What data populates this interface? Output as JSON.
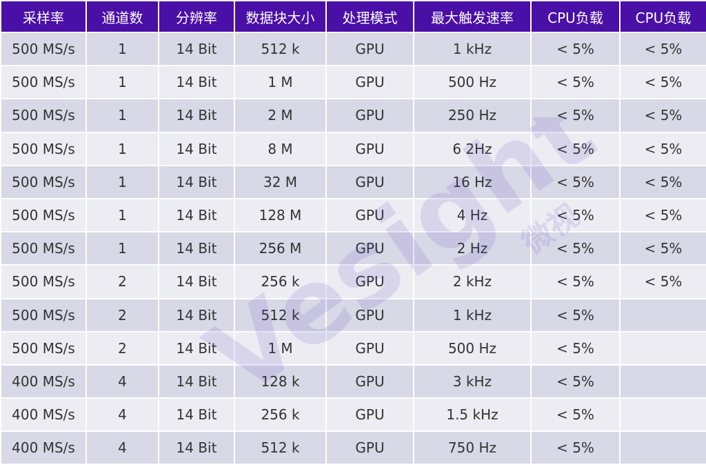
{
  "table": {
    "headers": [
      "采样率",
      "通道数",
      "分辨率",
      "数据块大小",
      "处理模式",
      "最大触发速率",
      "CPU负载",
      "CPU负载"
    ],
    "rows": [
      [
        "500 MS/s",
        "1",
        "14 Bit",
        "512 k",
        "GPU",
        "1 kHz",
        "< 5%",
        "< 5%"
      ],
      [
        "500 MS/s",
        "1",
        "14 Bit",
        "1 M",
        "GPU",
        "500 Hz",
        "< 5%",
        "< 5%"
      ],
      [
        "500 MS/s",
        "1",
        "14 Bit",
        "2 M",
        "GPU",
        "250 Hz",
        "< 5%",
        "< 5%"
      ],
      [
        "500 MS/s",
        "1",
        "14 Bit",
        "8 M",
        "GPU",
        "6 2Hz",
        "< 5%",
        "< 5%"
      ],
      [
        "500 MS/s",
        "1",
        "14 Bit",
        "32 M",
        "GPU",
        "16 Hz",
        "< 5%",
        "< 5%"
      ],
      [
        "500 MS/s",
        "1",
        "14 Bit",
        "128 M",
        "GPU",
        "4 Hz",
        "< 5%",
        "< 5%"
      ],
      [
        "500 MS/s",
        "1",
        "14 Bit",
        "256 M",
        "GPU",
        "2 Hz",
        "< 5%",
        "< 5%"
      ],
      [
        "500 MS/s",
        "2",
        "14 Bit",
        "256 k",
        "GPU",
        "2 kHz",
        "< 5%",
        "< 5%"
      ],
      [
        "500 MS/s",
        "2",
        "14 Bit",
        "512 k",
        "GPU",
        "1 kHz",
        "< 5%",
        ""
      ],
      [
        "500 MS/s",
        "2",
        "14 Bit",
        "1 M",
        "GPU",
        "500 Hz",
        "< 5%",
        ""
      ],
      [
        "400 MS/s",
        "4",
        "14 Bit",
        "128 k",
        "GPU",
        "3 kHz",
        "< 5%",
        ""
      ],
      [
        "400 MS/s",
        "4",
        "14 Bit",
        "256 k",
        "GPU",
        "1.5 kHz",
        "< 5%",
        ""
      ],
      [
        "400 MS/s",
        "4",
        "14 Bit",
        "512 k",
        "GPU",
        "750 Hz",
        "< 5%",
        ""
      ]
    ]
  },
  "watermark": {
    "text": "Vesight",
    "subtext": "微视"
  },
  "colors": {
    "header_bg": "#4a0fa6",
    "header_text": "#ffffff",
    "row_odd": "#d8d8e6",
    "row_even": "#ececf2",
    "cell_text": "#333333",
    "watermark": "#5b3fc4"
  }
}
